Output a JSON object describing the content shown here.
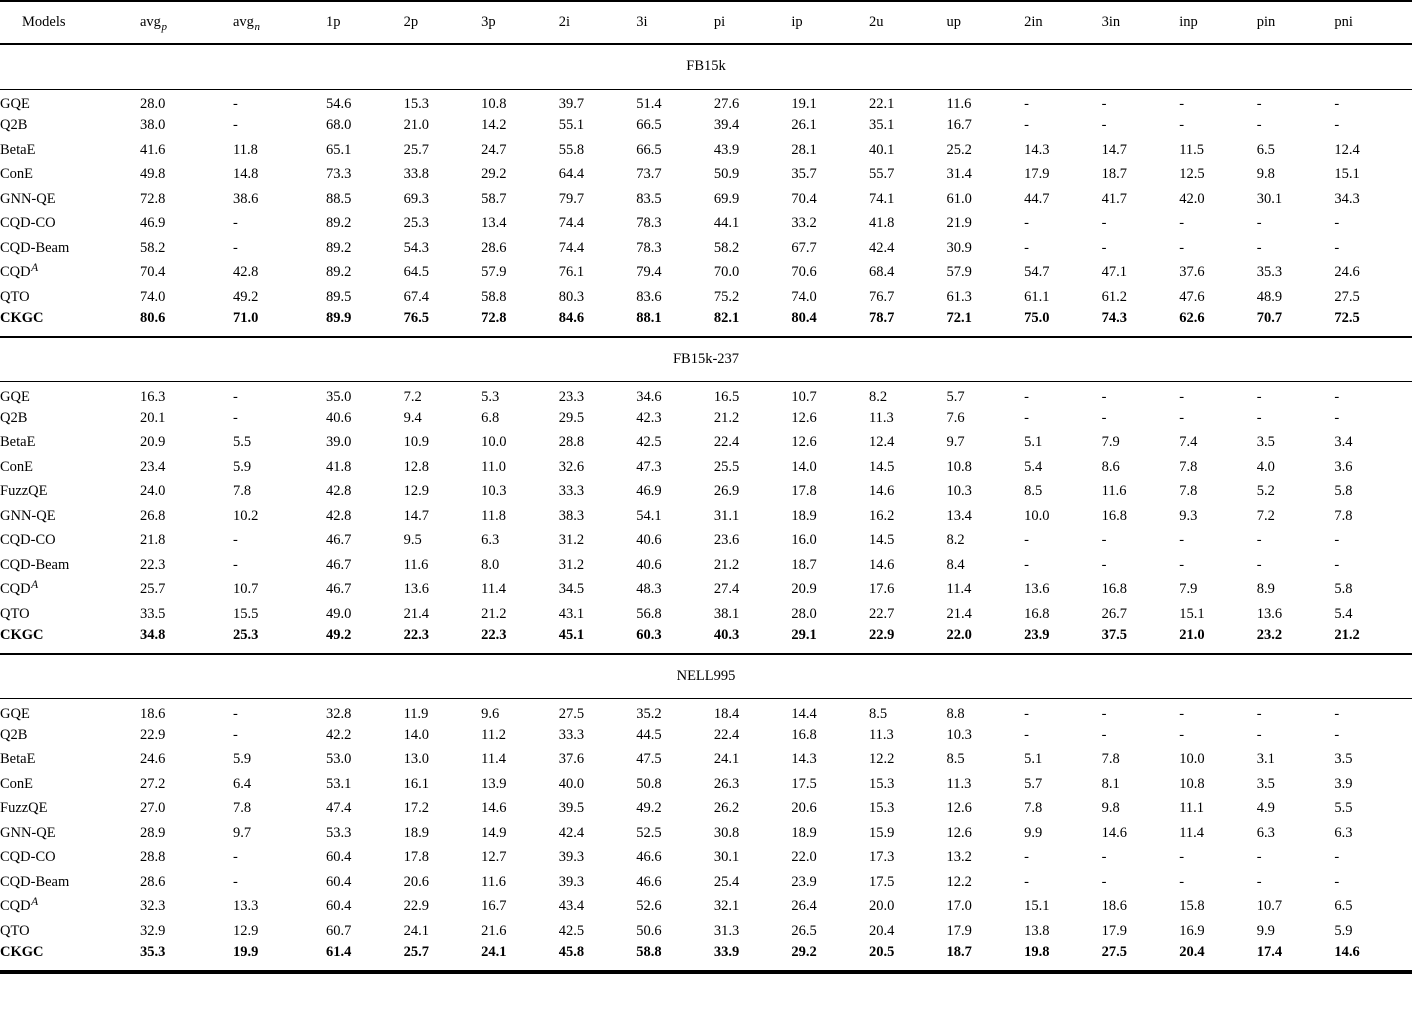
{
  "page": {
    "background": "#ffffff",
    "text_color": "#000000",
    "rule_color": "#000000"
  },
  "table": {
    "columns": [
      {
        "label": "Models"
      },
      {
        "label": "avg",
        "sub": "p"
      },
      {
        "label": "avg",
        "sub": "n"
      },
      {
        "label": "1p"
      },
      {
        "label": "2p"
      },
      {
        "label": "3p"
      },
      {
        "label": "2i"
      },
      {
        "label": "3i"
      },
      {
        "label": "pi"
      },
      {
        "label": "ip"
      },
      {
        "label": "2u"
      },
      {
        "label": "up"
      },
      {
        "label": "2in"
      },
      {
        "label": "3in"
      },
      {
        "label": "inp"
      },
      {
        "label": "pin"
      },
      {
        "label": "pni"
      }
    ],
    "sections": [
      {
        "dataset": "FB15k",
        "rows": [
          {
            "model": "GQE",
            "values": [
              "28.0",
              "-",
              "54.6",
              "15.3",
              "10.8",
              "39.7",
              "51.4",
              "27.6",
              "19.1",
              "22.1",
              "11.6",
              "-",
              "-",
              "-",
              "-",
              "-"
            ],
            "bold": false
          },
          {
            "model": "Q2B",
            "values": [
              "38.0",
              "-",
              "68.0",
              "21.0",
              "14.2",
              "55.1",
              "66.5",
              "39.4",
              "26.1",
              "35.1",
              "16.7",
              "-",
              "-",
              "-",
              "-",
              "-"
            ],
            "bold": false
          },
          {
            "model": "BetaE",
            "values": [
              "41.6",
              "11.8",
              "65.1",
              "25.7",
              "24.7",
              "55.8",
              "66.5",
              "43.9",
              "28.1",
              "40.1",
              "25.2",
              "14.3",
              "14.7",
              "11.5",
              "6.5",
              "12.4"
            ],
            "bold": false
          },
          {
            "model": "ConE",
            "values": [
              "49.8",
              "14.8",
              "73.3",
              "33.8",
              "29.2",
              "64.4",
              "73.7",
              "50.9",
              "35.7",
              "55.7",
              "31.4",
              "17.9",
              "18.7",
              "12.5",
              "9.8",
              "15.1"
            ],
            "bold": false
          },
          {
            "model": "GNN-QE",
            "values": [
              "72.8",
              "38.6",
              "88.5",
              "69.3",
              "58.7",
              "79.7",
              "83.5",
              "69.9",
              "70.4",
              "74.1",
              "61.0",
              "44.7",
              "41.7",
              "42.0",
              "30.1",
              "34.3"
            ],
            "bold": false
          },
          {
            "model": "CQD-CO",
            "values": [
              "46.9",
              "-",
              "89.2",
              "25.3",
              "13.4",
              "74.4",
              "78.3",
              "44.1",
              "33.2",
              "41.8",
              "21.9",
              "-",
              "-",
              "-",
              "-",
              "-"
            ],
            "bold": false
          },
          {
            "model": "CQD-Beam",
            "values": [
              "58.2",
              "-",
              "89.2",
              "54.3",
              "28.6",
              "74.4",
              "78.3",
              "58.2",
              "67.7",
              "42.4",
              "30.9",
              "-",
              "-",
              "-",
              "-",
              "-"
            ],
            "bold": false
          },
          {
            "model": "CQD",
            "model_sup": "A",
            "values": [
              "70.4",
              "42.8",
              "89.2",
              "64.5",
              "57.9",
              "76.1",
              "79.4",
              "70.0",
              "70.6",
              "68.4",
              "57.9",
              "54.7",
              "47.1",
              "37.6",
              "35.3",
              "24.6"
            ],
            "bold": false
          },
          {
            "model": "QTO",
            "values": [
              "74.0",
              "49.2",
              "89.5",
              "67.4",
              "58.8",
              "80.3",
              "83.6",
              "75.2",
              "74.0",
              "76.7",
              "61.3",
              "61.1",
              "61.2",
              "47.6",
              "48.9",
              "27.5"
            ],
            "bold": false
          },
          {
            "model": "CKGC",
            "values": [
              "80.6",
              "71.0",
              "89.9",
              "76.5",
              "72.8",
              "84.6",
              "88.1",
              "82.1",
              "80.4",
              "78.7",
              "72.1",
              "75.0",
              "74.3",
              "62.6",
              "70.7",
              "72.5"
            ],
            "bold": true
          }
        ]
      },
      {
        "dataset": "FB15k-237",
        "rows": [
          {
            "model": "GQE",
            "values": [
              "16.3",
              "-",
              "35.0",
              "7.2",
              "5.3",
              "23.3",
              "34.6",
              "16.5",
              "10.7",
              "8.2",
              "5.7",
              "-",
              "-",
              "-",
              "-",
              "-"
            ],
            "bold": false
          },
          {
            "model": "Q2B",
            "values": [
              "20.1",
              "-",
              "40.6",
              "9.4",
              "6.8",
              "29.5",
              "42.3",
              "21.2",
              "12.6",
              "11.3",
              "7.6",
              "-",
              "-",
              "-",
              "-",
              "-"
            ],
            "bold": false
          },
          {
            "model": "BetaE",
            "values": [
              "20.9",
              "5.5",
              "39.0",
              "10.9",
              "10.0",
              "28.8",
              "42.5",
              "22.4",
              "12.6",
              "12.4",
              "9.7",
              "5.1",
              "7.9",
              "7.4",
              "3.5",
              "3.4"
            ],
            "bold": false
          },
          {
            "model": "ConE",
            "values": [
              "23.4",
              "5.9",
              "41.8",
              "12.8",
              "11.0",
              "32.6",
              "47.3",
              "25.5",
              "14.0",
              "14.5",
              "10.8",
              "5.4",
              "8.6",
              "7.8",
              "4.0",
              "3.6"
            ],
            "bold": false
          },
          {
            "model": "FuzzQE",
            "values": [
              "24.0",
              "7.8",
              "42.8",
              "12.9",
              "10.3",
              "33.3",
              "46.9",
              "26.9",
              "17.8",
              "14.6",
              "10.3",
              "8.5",
              "11.6",
              "7.8",
              "5.2",
              "5.8"
            ],
            "bold": false
          },
          {
            "model": "GNN-QE",
            "values": [
              "26.8",
              "10.2",
              "42.8",
              "14.7",
              "11.8",
              "38.3",
              "54.1",
              "31.1",
              "18.9",
              "16.2",
              "13.4",
              "10.0",
              "16.8",
              "9.3",
              "7.2",
              "7.8"
            ],
            "bold": false
          },
          {
            "model": "CQD-CO",
            "values": [
              "21.8",
              "-",
              "46.7",
              "9.5",
              "6.3",
              "31.2",
              "40.6",
              "23.6",
              "16.0",
              "14.5",
              "8.2",
              "-",
              "-",
              "-",
              "-",
              "-"
            ],
            "bold": false
          },
          {
            "model": "CQD-Beam",
            "values": [
              "22.3",
              "-",
              "46.7",
              "11.6",
              "8.0",
              "31.2",
              "40.6",
              "21.2",
              "18.7",
              "14.6",
              "8.4",
              "-",
              "-",
              "-",
              "-",
              "-"
            ],
            "bold": false
          },
          {
            "model": "CQD",
            "model_sup": "A",
            "values": [
              "25.7",
              "10.7",
              "46.7",
              "13.6",
              "11.4",
              "34.5",
              "48.3",
              "27.4",
              "20.9",
              "17.6",
              "11.4",
              "13.6",
              "16.8",
              "7.9",
              "8.9",
              "5.8"
            ],
            "bold": false
          },
          {
            "model": "QTO",
            "values": [
              "33.5",
              "15.5",
              "49.0",
              "21.4",
              "21.2",
              "43.1",
              "56.8",
              "38.1",
              "28.0",
              "22.7",
              "21.4",
              "16.8",
              "26.7",
              "15.1",
              "13.6",
              "5.4"
            ],
            "bold": false
          },
          {
            "model": "CKGC",
            "values": [
              "34.8",
              "25.3",
              "49.2",
              "22.3",
              "22.3",
              "45.1",
              "60.3",
              "40.3",
              "29.1",
              "22.9",
              "22.0",
              "23.9",
              "37.5",
              "21.0",
              "23.2",
              "21.2"
            ],
            "bold": true
          }
        ]
      },
      {
        "dataset": "NELL995",
        "rows": [
          {
            "model": "GQE",
            "values": [
              "18.6",
              "-",
              "32.8",
              "11.9",
              "9.6",
              "27.5",
              "35.2",
              "18.4",
              "14.4",
              "8.5",
              "8.8",
              "-",
              "-",
              "-",
              "-",
              "-"
            ],
            "bold": false
          },
          {
            "model": "Q2B",
            "values": [
              "22.9",
              "-",
              "42.2",
              "14.0",
              "11.2",
              "33.3",
              "44.5",
              "22.4",
              "16.8",
              "11.3",
              "10.3",
              "-",
              "-",
              "-",
              "-",
              "-"
            ],
            "bold": false
          },
          {
            "model": "BetaE",
            "values": [
              "24.6",
              "5.9",
              "53.0",
              "13.0",
              "11.4",
              "37.6",
              "47.5",
              "24.1",
              "14.3",
              "12.2",
              "8.5",
              "5.1",
              "7.8",
              "10.0",
              "3.1",
              "3.5"
            ],
            "bold": false
          },
          {
            "model": "ConE",
            "values": [
              "27.2",
              "6.4",
              "53.1",
              "16.1",
              "13.9",
              "40.0",
              "50.8",
              "26.3",
              "17.5",
              "15.3",
              "11.3",
              "5.7",
              "8.1",
              "10.8",
              "3.5",
              "3.9"
            ],
            "bold": false
          },
          {
            "model": "FuzzQE",
            "values": [
              "27.0",
              "7.8",
              "47.4",
              "17.2",
              "14.6",
              "39.5",
              "49.2",
              "26.2",
              "20.6",
              "15.3",
              "12.6",
              "7.8",
              "9.8",
              "11.1",
              "4.9",
              "5.5"
            ],
            "bold": false
          },
          {
            "model": "GNN-QE",
            "values": [
              "28.9",
              "9.7",
              "53.3",
              "18.9",
              "14.9",
              "42.4",
              "52.5",
              "30.8",
              "18.9",
              "15.9",
              "12.6",
              "9.9",
              "14.6",
              "11.4",
              "6.3",
              "6.3"
            ],
            "bold": false
          },
          {
            "model": "CQD-CO",
            "values": [
              "28.8",
              "-",
              "60.4",
              "17.8",
              "12.7",
              "39.3",
              "46.6",
              "30.1",
              "22.0",
              "17.3",
              "13.2",
              "-",
              "-",
              "-",
              "-",
              "-"
            ],
            "bold": false
          },
          {
            "model": "CQD-Beam",
            "values": [
              "28.6",
              "-",
              "60.4",
              "20.6",
              "11.6",
              "39.3",
              "46.6",
              "25.4",
              "23.9",
              "17.5",
              "12.2",
              "-",
              "-",
              "-",
              "-",
              "-"
            ],
            "bold": false
          },
          {
            "model": "CQD",
            "model_sup": "A",
            "values": [
              "32.3",
              "13.3",
              "60.4",
              "22.9",
              "16.7",
              "43.4",
              "52.6",
              "32.1",
              "26.4",
              "20.0",
              "17.0",
              "15.1",
              "18.6",
              "15.8",
              "10.7",
              "6.5"
            ],
            "bold": false
          },
          {
            "model": "QTO",
            "values": [
              "32.9",
              "12.9",
              "60.7",
              "24.1",
              "21.6",
              "42.5",
              "50.6",
              "31.3",
              "26.5",
              "20.4",
              "17.9",
              "13.8",
              "17.9",
              "16.9",
              "9.9",
              "5.9"
            ],
            "bold": false
          },
          {
            "model": "CKGC",
            "values": [
              "35.3",
              "19.9",
              "61.4",
              "25.7",
              "24.1",
              "45.8",
              "58.8",
              "33.9",
              "29.2",
              "20.5",
              "18.7",
              "19.8",
              "27.5",
              "20.4",
              "17.4",
              "14.6"
            ],
            "bold": true
          }
        ]
      }
    ]
  }
}
